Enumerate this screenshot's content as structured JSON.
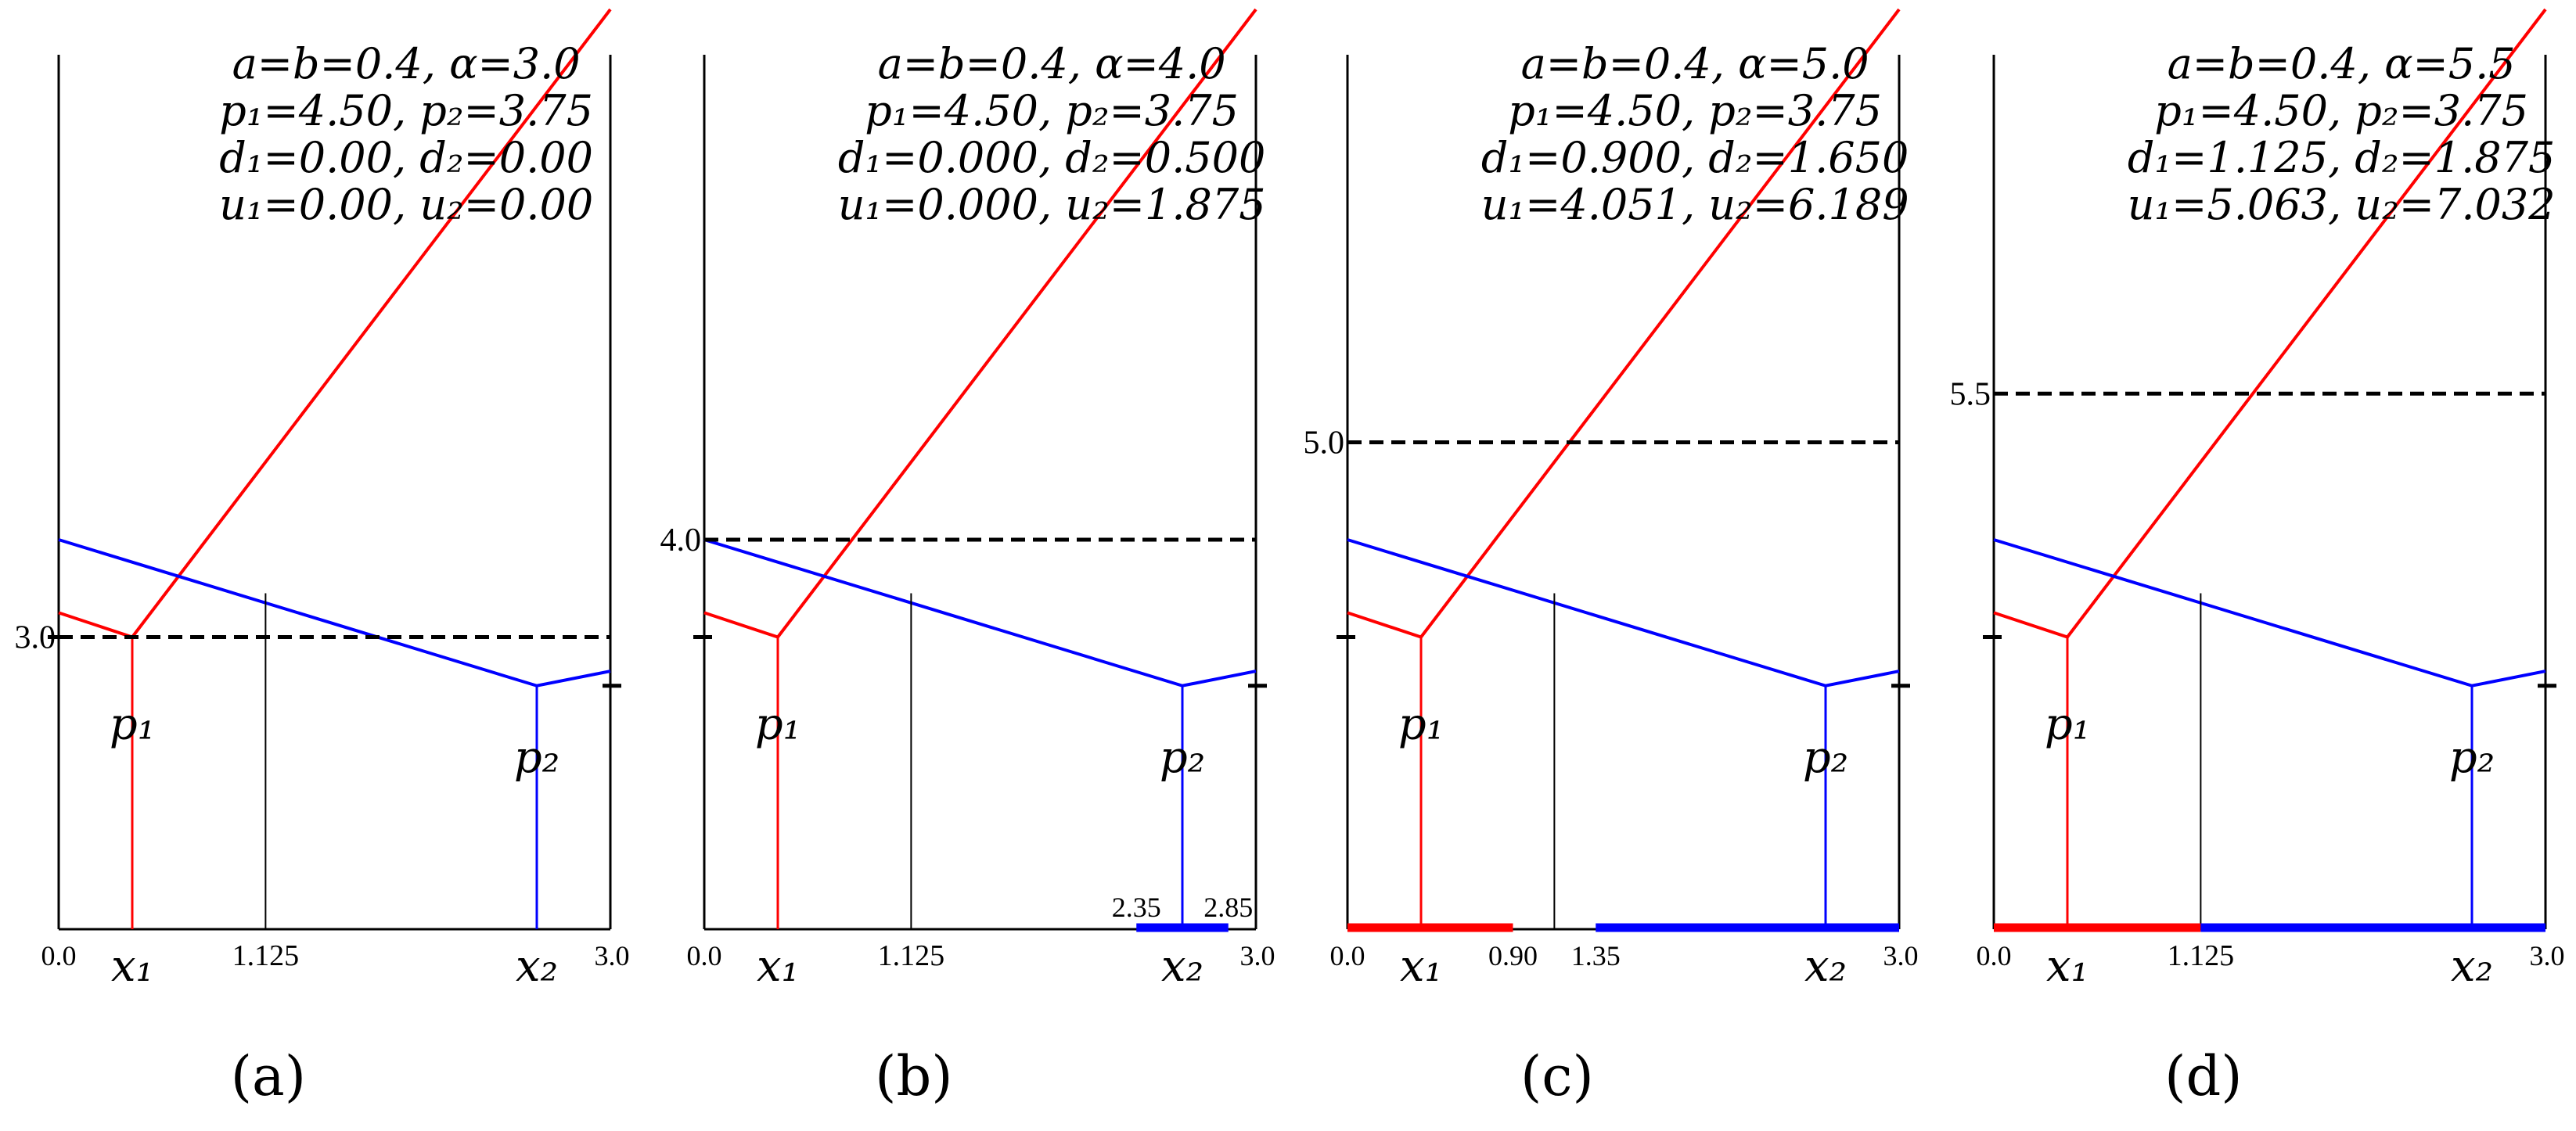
{
  "colors": {
    "red": "#ff0000",
    "blue": "#0000ff",
    "black": "#000000",
    "background": "#ffffff"
  },
  "panels": [
    {
      "caption": "(a)",
      "header": [
        "a=b=0.4, α=3.0",
        "p₁=4.50, p₂=3.75",
        "d₁=0.00, d₂=0.00",
        "u₁=0.00, u₂=0.00"
      ],
      "alpha_label": "3.0",
      "alpha_value": 3.0,
      "intersection_label": "1.125",
      "axis_start_label": "0.0",
      "axis_end_label": "3.0",
      "x1_label": "x₁",
      "x2_label": "x₂",
      "p1_label": "p₁",
      "p2_label": "p₂",
      "red_interval": null,
      "blue_interval": null,
      "red_interval_labels": [],
      "blue_interval_labels": []
    },
    {
      "caption": "(b)",
      "header": [
        "a=b=0.4, α=4.0",
        "p₁=4.50, p₂=3.75",
        "d₁=0.000, d₂=0.500",
        "u₁=0.000, u₂=1.875"
      ],
      "alpha_label": "4.0",
      "alpha_value": 4.0,
      "intersection_label": "1.125",
      "axis_start_label": "0.0",
      "axis_end_label": "3.0",
      "x1_label": "x₁",
      "x2_label": "x₂",
      "p1_label": "p₁",
      "p2_label": "p₂",
      "red_interval": null,
      "blue_interval": [
        2.35,
        2.85
      ],
      "red_interval_labels": [],
      "blue_interval_labels": [
        "2.35",
        "2.85"
      ]
    },
    {
      "caption": "(c)",
      "header": [
        "a=b=0.4, α=5.0",
        "p₁=4.50, p₂=3.75",
        "d₁=0.900, d₂=1.650",
        "u₁=4.051, u₂=6.189"
      ],
      "alpha_label": "5.0",
      "alpha_value": 5.0,
      "intersection_label": "",
      "axis_start_label": "0.0",
      "axis_end_label": "3.0",
      "x1_label": "x₁",
      "x2_label": "x₂",
      "p1_label": "p₁",
      "p2_label": "p₂",
      "red_interval": [
        0.0,
        0.9
      ],
      "blue_interval": [
        1.35,
        3.0
      ],
      "red_interval_labels": [
        "0.90"
      ],
      "blue_interval_labels": [
        "1.35"
      ]
    },
    {
      "caption": "(d)",
      "header": [
        "a=b=0.4, α=5.5",
        "p₁=4.50, p₂=3.75",
        "d₁=1.125, d₂=1.875",
        "u₁=5.063, u₂=7.032"
      ],
      "alpha_label": "5.5",
      "alpha_value": 5.5,
      "intersection_label": "1.125",
      "axis_start_label": "0.0",
      "axis_end_label": "3.0",
      "x1_label": "x₁",
      "x2_label": "x₂",
      "p1_label": "p₁",
      "p2_label": "p₂",
      "red_interval": [
        0.0,
        1.125
      ],
      "blue_interval": [
        1.125,
        3.0
      ],
      "red_interval_labels": [],
      "blue_interval_labels": []
    }
  ]
}
